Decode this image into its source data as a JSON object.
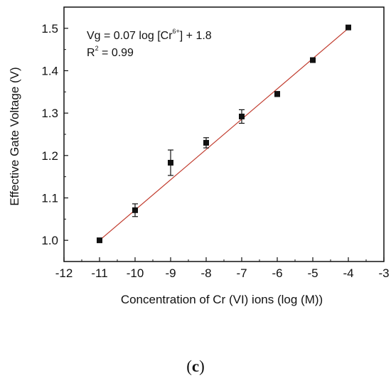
{
  "chart_data": {
    "type": "scatter",
    "xlabel": "Concentration of Cr (VI) ions (log (M))",
    "ylabel": "Effective Gate Voltage (V)",
    "xlim": [
      -12,
      -3
    ],
    "ylim": [
      0.95,
      1.55
    ],
    "x_ticks": [
      -12,
      -11,
      -10,
      -9,
      -8,
      -7,
      -6,
      -5,
      -4,
      -3
    ],
    "y_ticks": [
      1.0,
      1.1,
      1.2,
      1.3,
      1.4,
      1.5
    ],
    "x_tick_labels": [
      "-12",
      "-11",
      "-10",
      "-9",
      "-8",
      "-7",
      "-6",
      "-5",
      "-4",
      "-3"
    ],
    "y_tick_labels": [
      "1.0",
      "1.1",
      "1.2",
      "1.3",
      "1.4",
      "1.5"
    ],
    "points": [
      {
        "x": -11,
        "y": 1.0,
        "err": 0.002
      },
      {
        "x": -10,
        "y": 1.071,
        "err": 0.015
      },
      {
        "x": -9,
        "y": 1.183,
        "err": 0.03
      },
      {
        "x": -8,
        "y": 1.23,
        "err": 0.012
      },
      {
        "x": -7,
        "y": 1.292,
        "err": 0.016
      },
      {
        "x": -6,
        "y": 1.345,
        "err": 0.006
      },
      {
        "x": -5,
        "y": 1.425,
        "err": 0.002
      },
      {
        "x": -4,
        "y": 1.502,
        "err": 0.002
      }
    ],
    "fit_line": {
      "x": [
        -11,
        -4
      ],
      "y": [
        1.0,
        1.5
      ]
    },
    "annotations": {
      "eq_prefix": "Vg = 0.07 log [Cr",
      "eq_sup": "6+",
      "eq_suffix": "] + 1.8",
      "r2_prefix": "R",
      "r2_sup": "2",
      "r2_suffix": " = 0.99"
    },
    "colors": {
      "fit": "#c0392b",
      "marker": "#111111",
      "axis": "#111111"
    },
    "grid": false
  },
  "caption": {
    "open": "(",
    "letter": "c",
    "close": ")"
  }
}
